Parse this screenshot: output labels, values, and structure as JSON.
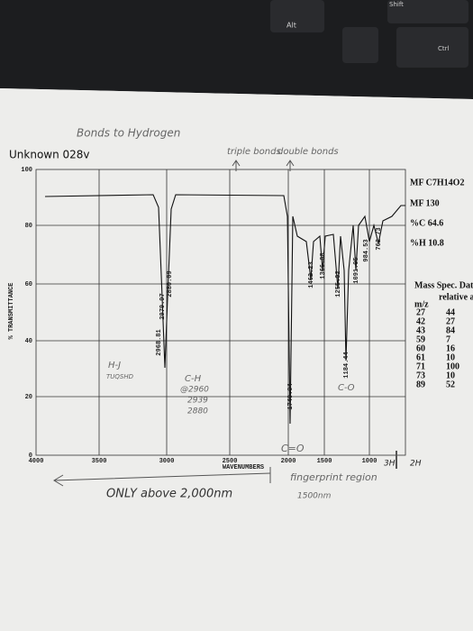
{
  "keyboard": {
    "keys": [
      "Shift",
      "Alt",
      "Ctrl"
    ]
  },
  "notes": {
    "heading": "Bonds to Hydrogen",
    "triple": "triple bonds",
    "double": "double bonds",
    "hj": "H-J",
    "hj_sub": "TUQSHD",
    "ch": "C-H",
    "ch_sub": "@2960",
    "ch_a": "2939",
    "ch_b": "2880",
    "co": "C-O",
    "c_o": "C=O",
    "only": "ONLY above 2,000nm",
    "finger": "fingerprint region",
    "nm": "1500nm",
    "h3": "3H",
    "h2": "2H"
  },
  "sheet": {
    "title": "Unknown 028v",
    "y_label": "% TRANSMITTANCE",
    "x_label": "WAVENUMBERS",
    "yticks": [
      "100",
      "80",
      "60",
      "40",
      "20",
      "0"
    ],
    "xticks": [
      "4000",
      "3500",
      "3000",
      "2500",
      "2000",
      "1500",
      "1000"
    ],
    "peaks": [
      "2979.97",
      "2880.09",
      "2968.81",
      "1740.04",
      "1462.23",
      "1366.08",
      "1255.02",
      "1184.44",
      "1091.05",
      "984.53",
      "762.73"
    ],
    "mf": "MF C7H14O2",
    "mw": "MF 130",
    "c": "%C 64.6",
    "h": "%H 10.8",
    "ms_title": "Mass Spec. Data",
    "ms_head": [
      "m/z",
      "relative abund."
    ],
    "ms_rows": [
      [
        "27",
        "44"
      ],
      [
        "42",
        "27"
      ],
      [
        "43",
        "84"
      ],
      [
        "59",
        "7"
      ],
      [
        "60",
        "16"
      ],
      [
        "61",
        "10"
      ],
      [
        "71",
        "100"
      ],
      [
        "73",
        "10"
      ],
      [
        "89",
        "52"
      ]
    ]
  }
}
